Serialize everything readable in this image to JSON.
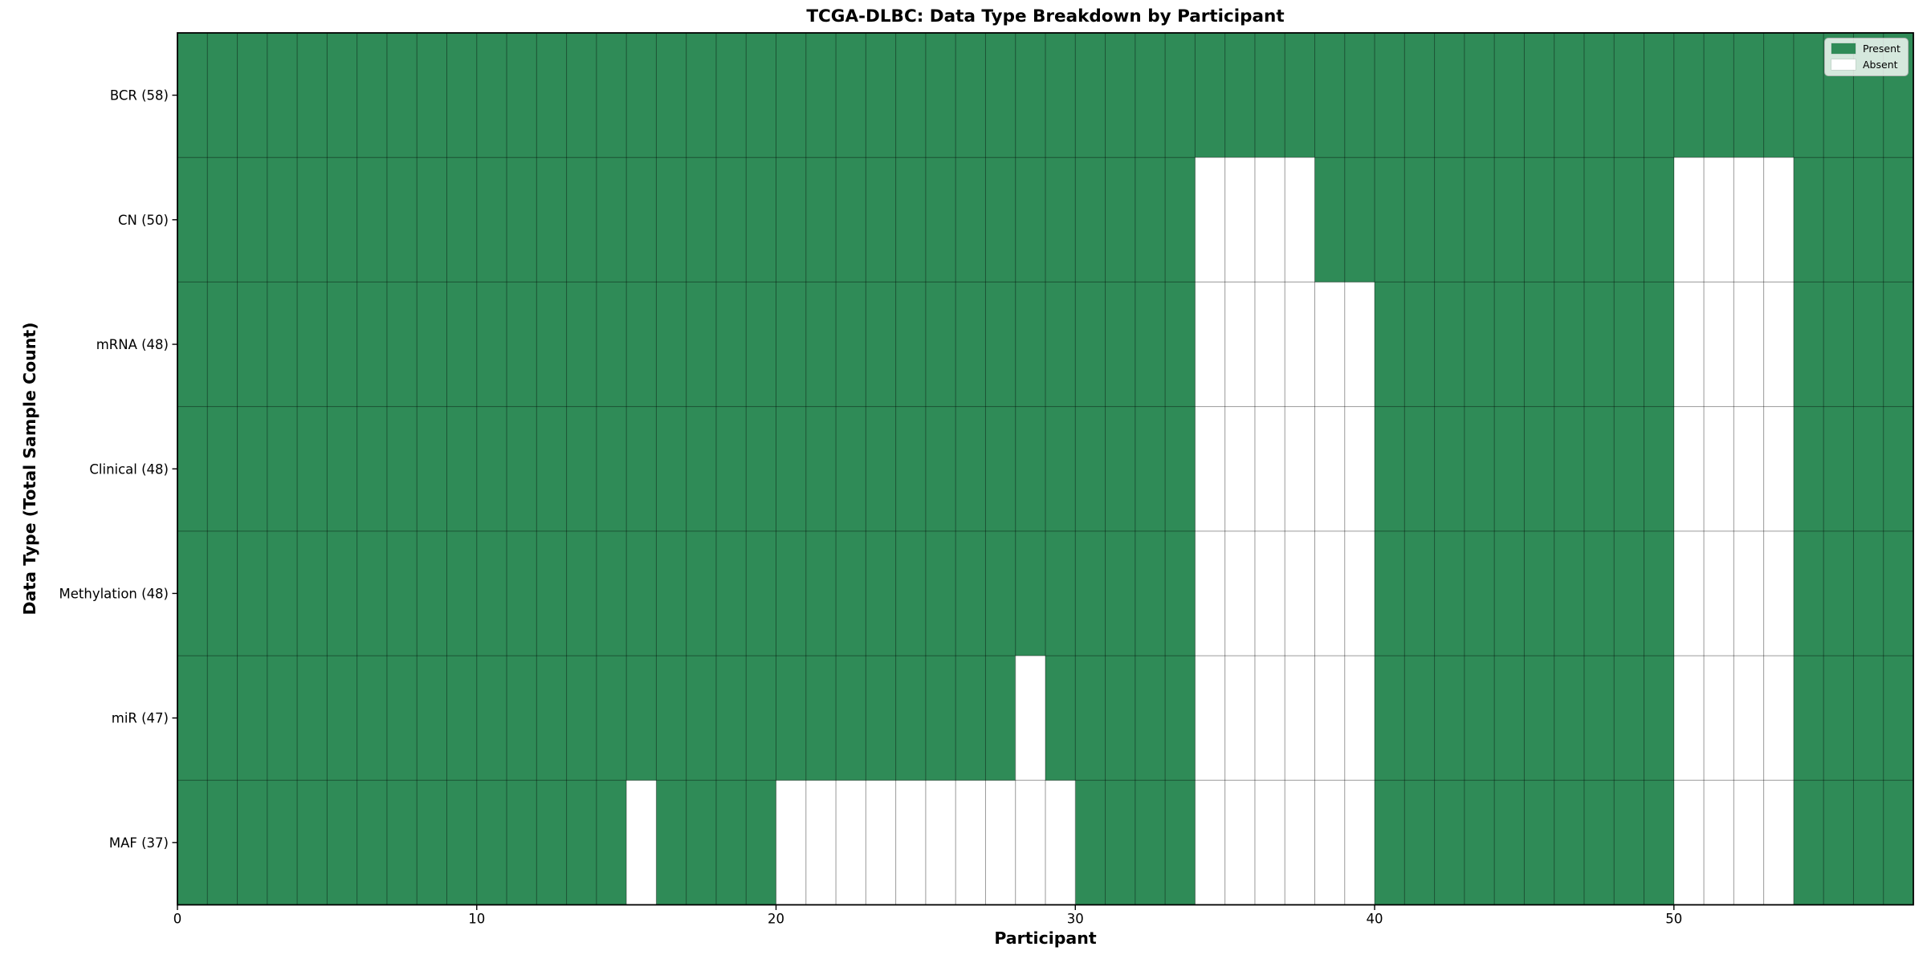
{
  "chart_data": {
    "type": "heatmap",
    "title": "TCGA-DLBC: Data Type Breakdown by Participant",
    "xlabel": "Participant",
    "ylabel": "Data Type (Total Sample Count)",
    "x_ticks": [
      0,
      10,
      20,
      30,
      40,
      50
    ],
    "x_range": [
      0,
      58
    ],
    "n_participants": 58,
    "grid": false,
    "legend_position": "upper right",
    "rows": [
      {
        "label": "BCR (58)",
        "total_present": 58,
        "absent_participants": []
      },
      {
        "label": "CN (50)",
        "total_present": 50,
        "absent_participants": [
          34,
          35,
          36,
          37,
          50,
          51,
          52,
          53
        ]
      },
      {
        "label": "mRNA (48)",
        "total_present": 48,
        "absent_participants": [
          34,
          35,
          36,
          37,
          38,
          39,
          50,
          51,
          52,
          53
        ]
      },
      {
        "label": "Clinical (48)",
        "total_present": 48,
        "absent_participants": [
          34,
          35,
          36,
          37,
          38,
          39,
          50,
          51,
          52,
          53
        ]
      },
      {
        "label": "Methylation (48)",
        "total_present": 48,
        "absent_participants": [
          34,
          35,
          36,
          37,
          38,
          39,
          50,
          51,
          52,
          53
        ]
      },
      {
        "label": "miR (47)",
        "total_present": 47,
        "absent_participants": [
          28,
          34,
          35,
          36,
          37,
          38,
          39,
          50,
          51,
          52,
          53
        ]
      },
      {
        "label": "MAF (37)",
        "total_present": 37,
        "absent_participants": [
          15,
          20,
          21,
          22,
          23,
          24,
          25,
          26,
          27,
          28,
          29,
          34,
          35,
          36,
          37,
          38,
          39,
          50,
          51,
          52,
          53
        ]
      }
    ],
    "legend": [
      {
        "label": "Present",
        "color": "#2f8b57"
      },
      {
        "label": "Absent",
        "color": "#ffffff"
      }
    ],
    "colors": {
      "present": "#2f8b57",
      "absent": "#ffffff",
      "cell_edge": "rgba(0,0,0,0.40)",
      "spine": "#000000"
    }
  }
}
